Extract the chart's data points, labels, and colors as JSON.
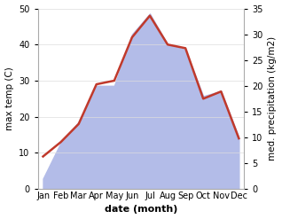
{
  "months": [
    "Jan",
    "Feb",
    "Mar",
    "Apr",
    "May",
    "Jun",
    "Jul",
    "Aug",
    "Sep",
    "Oct",
    "Nov",
    "Dec"
  ],
  "month_indices": [
    0,
    1,
    2,
    3,
    4,
    5,
    6,
    7,
    8,
    9,
    10,
    11
  ],
  "temperature": [
    9,
    13,
    18,
    29,
    30,
    42,
    48,
    40,
    39,
    25,
    27,
    14
  ],
  "precipitation": [
    2,
    9,
    13,
    20,
    20,
    30,
    34,
    28,
    27,
    18,
    19,
    10
  ],
  "temp_ylim": [
    0,
    50
  ],
  "precip_ylim": [
    0,
    35
  ],
  "temp_yticks": [
    0,
    10,
    20,
    30,
    40,
    50
  ],
  "precip_yticks": [
    0,
    5,
    10,
    15,
    20,
    25,
    30,
    35
  ],
  "temp_color": "#c0392b",
  "precip_fill_color": "#b3bce8",
  "background_color": "#ffffff",
  "line_width": 1.8,
  "xlabel": "date (month)",
  "ylabel_left": "max temp (C)",
  "ylabel_right": "med. precipitation (kg/m2)",
  "xlabel_fontsize": 8,
  "ylabel_fontsize": 7.5,
  "tick_fontsize": 7
}
